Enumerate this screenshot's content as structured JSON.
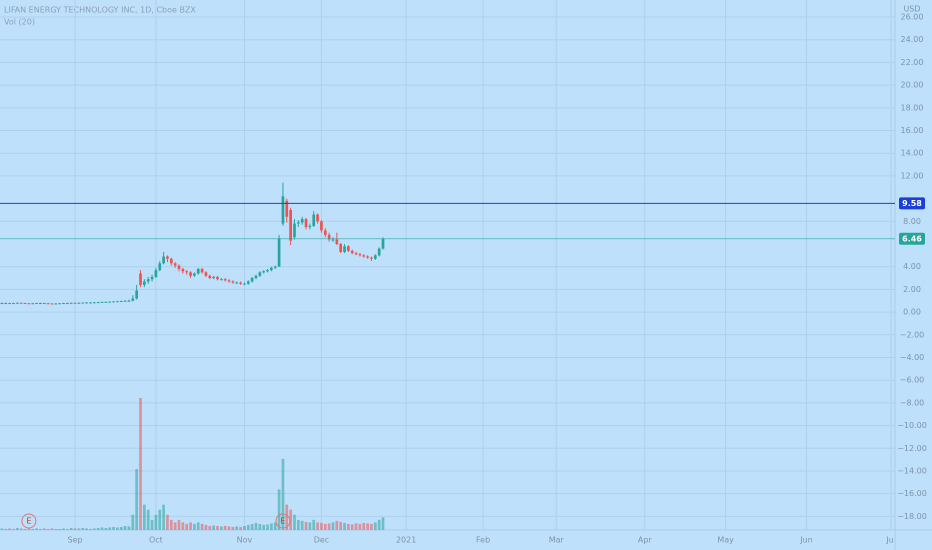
{
  "chart_data": {
    "type": "candlestick",
    "title": "LIFAN ENERGY TECHNOLOGY INC, 1D, Cboe BZX",
    "volume_label": "Vol (20)",
    "currency": "USD",
    "up_color": "#26a69a",
    "down_color": "#ef5350",
    "grid": true,
    "xlim": [
      -0.5,
      232
    ],
    "ylim": [
      -19.2,
      27.5
    ],
    "xticks": [
      {
        "value": 19,
        "label": "Sep"
      },
      {
        "value": 40,
        "label": "Oct"
      },
      {
        "value": 63,
        "label": "Nov"
      },
      {
        "value": 83,
        "label": "Dec"
      },
      {
        "value": 105,
        "label": "2021"
      },
      {
        "value": 125,
        "label": "Feb"
      },
      {
        "value": 144,
        "label": "Mar"
      },
      {
        "value": 167,
        "label": "Apr"
      },
      {
        "value": 188,
        "label": "May"
      },
      {
        "value": 209,
        "label": "Jun"
      },
      {
        "value": 231,
        "label": "Jul"
      }
    ],
    "yticks": [
      {
        "value": 26,
        "label": "26.00"
      },
      {
        "value": 24,
        "label": "24.00"
      },
      {
        "value": 22,
        "label": "22.00"
      },
      {
        "value": 20,
        "label": "20.00"
      },
      {
        "value": 18,
        "label": "18.00"
      },
      {
        "value": 16,
        "label": "16.00"
      },
      {
        "value": 14,
        "label": "14.00"
      },
      {
        "value": 12,
        "label": "12.00"
      },
      {
        "value": 8,
        "label": "8.00"
      },
      {
        "value": 4,
        "label": "4.00"
      },
      {
        "value": 2,
        "label": "2.00"
      },
      {
        "value": 0,
        "label": "0.00"
      },
      {
        "value": -2,
        "label": "−2.00"
      },
      {
        "value": -4,
        "label": "−4.00"
      },
      {
        "value": -6,
        "label": "−6.00"
      },
      {
        "value": -8,
        "label": "−8.00"
      },
      {
        "value": -10,
        "label": "−10.00"
      },
      {
        "value": -12,
        "label": "−12.00"
      },
      {
        "value": -14,
        "label": "−14.00"
      },
      {
        "value": -16,
        "label": "−16.00"
      },
      {
        "value": -18,
        "label": "−18.00"
      }
    ],
    "price_lines": [
      {
        "value": 9.58,
        "color": "#1a3fd6"
      },
      {
        "value": 6.46,
        "color": "#26a69a"
      }
    ],
    "earnings_markers": [
      {
        "x": 7,
        "label": "E"
      },
      {
        "x": 73,
        "label": "E"
      }
    ],
    "x": [
      0,
      1,
      2,
      3,
      4,
      5,
      6,
      7,
      8,
      9,
      10,
      11,
      12,
      13,
      14,
      15,
      16,
      17,
      18,
      19,
      20,
      21,
      22,
      23,
      24,
      25,
      26,
      27,
      28,
      29,
      30,
      31,
      32,
      33,
      34,
      35,
      36,
      37,
      38,
      39,
      40,
      41,
      42,
      43,
      44,
      45,
      46,
      47,
      48,
      49,
      50,
      51,
      52,
      53,
      54,
      55,
      56,
      57,
      58,
      59,
      60,
      61,
      62,
      63,
      64,
      65,
      66,
      67,
      68,
      69,
      70,
      71,
      72,
      73,
      74,
      75,
      76,
      77,
      78,
      79,
      80,
      81,
      82,
      83,
      84,
      85,
      86,
      87,
      88,
      89,
      90,
      91,
      92,
      93,
      94,
      95,
      96,
      97,
      98,
      99
    ],
    "ohlc": [
      [
        0.8,
        0.85,
        0.75,
        0.8
      ],
      [
        0.8,
        0.84,
        0.76,
        0.8
      ],
      [
        0.8,
        0.82,
        0.75,
        0.78
      ],
      [
        0.78,
        0.83,
        0.76,
        0.8
      ],
      [
        0.8,
        0.85,
        0.78,
        0.82
      ],
      [
        0.82,
        0.84,
        0.78,
        0.8
      ],
      [
        0.8,
        0.82,
        0.76,
        0.78
      ],
      [
        0.78,
        0.8,
        0.74,
        0.76
      ],
      [
        0.76,
        0.8,
        0.74,
        0.78
      ],
      [
        0.78,
        0.82,
        0.76,
        0.8
      ],
      [
        0.8,
        0.83,
        0.77,
        0.8
      ],
      [
        0.8,
        0.82,
        0.76,
        0.78
      ],
      [
        0.78,
        0.8,
        0.74,
        0.76
      ],
      [
        0.76,
        0.78,
        0.72,
        0.75
      ],
      [
        0.75,
        0.79,
        0.73,
        0.76
      ],
      [
        0.76,
        0.8,
        0.74,
        0.78
      ],
      [
        0.78,
        0.82,
        0.76,
        0.8
      ],
      [
        0.8,
        0.83,
        0.77,
        0.8
      ],
      [
        0.8,
        0.85,
        0.78,
        0.82
      ],
      [
        0.82,
        0.84,
        0.78,
        0.8
      ],
      [
        0.8,
        0.84,
        0.78,
        0.82
      ],
      [
        0.82,
        0.86,
        0.8,
        0.84
      ],
      [
        0.84,
        0.88,
        0.82,
        0.85
      ],
      [
        0.85,
        0.88,
        0.82,
        0.85
      ],
      [
        0.85,
        0.89,
        0.83,
        0.86
      ],
      [
        0.86,
        0.9,
        0.84,
        0.88
      ],
      [
        0.88,
        0.92,
        0.86,
        0.9
      ],
      [
        0.9,
        0.93,
        0.87,
        0.9
      ],
      [
        0.9,
        0.95,
        0.88,
        0.92
      ],
      [
        0.92,
        0.97,
        0.9,
        0.94
      ],
      [
        0.94,
        0.99,
        0.92,
        0.96
      ],
      [
        0.96,
        1.0,
        0.93,
        0.98
      ],
      [
        0.98,
        1.05,
        0.95,
        1.0
      ],
      [
        1.0,
        1.1,
        0.95,
        1.0
      ],
      [
        1.0,
        1.5,
        0.95,
        1.2
      ],
      [
        1.2,
        2.4,
        1.1,
        1.9
      ],
      [
        3.4,
        3.7,
        2.2,
        2.4
      ],
      [
        2.4,
        2.9,
        2.2,
        2.7
      ],
      [
        2.7,
        3.1,
        2.5,
        2.9
      ],
      [
        2.9,
        3.3,
        2.7,
        3.1
      ],
      [
        3.1,
        3.9,
        3.0,
        3.7
      ],
      [
        3.7,
        4.5,
        3.6,
        4.3
      ],
      [
        4.3,
        5.3,
        4.2,
        4.9
      ],
      [
        4.9,
        5.0,
        4.4,
        4.7
      ],
      [
        4.7,
        4.8,
        4.1,
        4.3
      ],
      [
        4.3,
        4.4,
        3.9,
        4.1
      ],
      [
        4.1,
        4.2,
        3.6,
        3.8
      ],
      [
        3.8,
        3.9,
        3.4,
        3.6
      ],
      [
        3.6,
        3.7,
        3.3,
        3.5
      ],
      [
        3.5,
        3.6,
        3.0,
        3.2
      ],
      [
        3.2,
        3.5,
        3.1,
        3.4
      ],
      [
        3.4,
        3.9,
        3.3,
        3.8
      ],
      [
        3.8,
        3.9,
        3.4,
        3.5
      ],
      [
        3.5,
        3.6,
        3.1,
        3.2
      ],
      [
        3.2,
        3.3,
        2.9,
        3.0
      ],
      [
        3.0,
        3.2,
        2.9,
        3.1
      ],
      [
        3.1,
        3.2,
        2.8,
        2.9
      ],
      [
        2.9,
        3.0,
        2.8,
        2.9
      ],
      [
        2.9,
        3.0,
        2.7,
        2.8
      ],
      [
        2.8,
        2.9,
        2.6,
        2.7
      ],
      [
        2.7,
        2.8,
        2.5,
        2.6
      ],
      [
        2.6,
        2.7,
        2.5,
        2.6
      ],
      [
        2.6,
        2.7,
        2.4,
        2.5
      ],
      [
        2.5,
        2.6,
        2.4,
        2.5
      ],
      [
        2.5,
        2.8,
        2.4,
        2.7
      ],
      [
        2.7,
        3.1,
        2.6,
        3.0
      ],
      [
        3.0,
        3.3,
        2.9,
        3.2
      ],
      [
        3.2,
        3.6,
        3.1,
        3.5
      ],
      [
        3.5,
        3.7,
        3.4,
        3.6
      ],
      [
        3.6,
        3.8,
        3.5,
        3.7
      ],
      [
        3.7,
        4.0,
        3.6,
        3.9
      ],
      [
        3.9,
        4.1,
        3.8,
        4.0
      ],
      [
        4.0,
        6.8,
        4.0,
        6.5
      ],
      [
        7.8,
        11.4,
        7.6,
        10.2
      ],
      [
        9.8,
        10.0,
        7.9,
        8.4
      ],
      [
        9.0,
        9.2,
        5.9,
        6.3
      ],
      [
        6.6,
        8.2,
        6.4,
        7.8
      ],
      [
        7.8,
        8.1,
        7.5,
        7.9
      ],
      [
        7.9,
        8.4,
        7.7,
        8.2
      ],
      [
        8.2,
        8.3,
        7.3,
        7.5
      ],
      [
        7.5,
        7.8,
        7.3,
        7.6
      ],
      [
        7.6,
        8.9,
        7.5,
        8.6
      ],
      [
        8.6,
        8.7,
        7.8,
        8.0
      ],
      [
        8.0,
        8.1,
        7.0,
        7.2
      ],
      [
        7.2,
        7.4,
        6.6,
        6.8
      ],
      [
        6.8,
        7.0,
        6.2,
        6.4
      ],
      [
        6.4,
        6.6,
        6.2,
        6.4
      ],
      [
        6.4,
        7.0,
        5.9,
        6.0
      ],
      [
        6.0,
        6.1,
        5.2,
        5.3
      ],
      [
        5.3,
        6.0,
        5.2,
        5.8
      ],
      [
        5.8,
        5.9,
        5.3,
        5.4
      ],
      [
        5.4,
        5.5,
        5.1,
        5.2
      ],
      [
        5.2,
        5.3,
        5.0,
        5.1
      ],
      [
        5.1,
        5.2,
        4.9,
        5.0
      ],
      [
        5.0,
        5.1,
        4.8,
        4.9
      ],
      [
        4.9,
        5.0,
        4.7,
        4.8
      ],
      [
        4.8,
        4.9,
        4.5,
        4.7
      ],
      [
        4.7,
        5.1,
        4.6,
        5.0
      ],
      [
        5.0,
        5.7,
        4.9,
        5.6
      ],
      [
        5.6,
        6.6,
        5.5,
        6.46
      ]
    ],
    "volume": [
      0.3,
      0.2,
      0.3,
      0.2,
      0.4,
      0.3,
      0.2,
      0.3,
      0.2,
      0.3,
      0.2,
      0.3,
      0.2,
      0.3,
      0.2,
      0.2,
      0.3,
      0.2,
      0.4,
      0.3,
      0.3,
      0.4,
      0.3,
      0.2,
      0.3,
      0.4,
      0.5,
      0.4,
      0.5,
      0.6,
      0.5,
      0.6,
      0.8,
      0.7,
      3,
      12,
      26,
      5,
      4,
      2,
      3,
      4,
      5,
      3,
      2,
      1.5,
      2,
      1.5,
      1.2,
      1.5,
      1.2,
      1.5,
      1.2,
      1,
      0.8,
      0.9,
      0.8,
      0.7,
      0.8,
      0.7,
      0.6,
      0.7,
      0.6,
      0.8,
      1,
      1.2,
      1.4,
      1.2,
      1,
      1.1,
      1.3,
      1.5,
      8,
      14,
      5,
      4,
      3,
      2,
      1.8,
      1.6,
      1.5,
      2,
      1.5,
      1.4,
      1.2,
      1.3,
      1.5,
      1.8,
      1.6,
      1.4,
      1.2,
      1.1,
      1.3,
      1.2,
      1.4,
      1.3,
      1.2,
      1.5,
      2,
      2.5
    ]
  }
}
